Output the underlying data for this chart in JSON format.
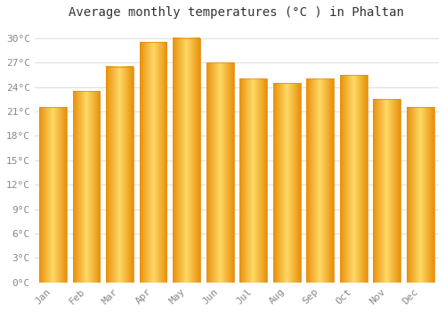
{
  "months": [
    "Jan",
    "Feb",
    "Mar",
    "Apr",
    "May",
    "Jun",
    "Jul",
    "Aug",
    "Sep",
    "Oct",
    "Nov",
    "Dec"
  ],
  "temperatures": [
    21.5,
    23.5,
    26.5,
    29.5,
    30.0,
    27.0,
    25.0,
    24.5,
    25.0,
    25.5,
    22.5,
    21.5
  ],
  "bar_color_light": "#FFD966",
  "bar_color_mid": "#FFC020",
  "bar_color_dark": "#E8900A",
  "title": "Average monthly temperatures (°C ) in Phaltan",
  "ylabel_ticks": [
    "0°C",
    "3°C",
    "6°C",
    "9°C",
    "12°C",
    "15°C",
    "18°C",
    "21°C",
    "24°C",
    "27°C",
    "30°C"
  ],
  "ytick_values": [
    0,
    3,
    6,
    9,
    12,
    15,
    18,
    21,
    24,
    27,
    30
  ],
  "ylim": [
    0,
    31.5
  ],
  "background_color": "#FFFFFF",
  "grid_color": "#DDDDDD",
  "title_fontsize": 10,
  "tick_fontsize": 8,
  "font_family": "monospace",
  "tick_color": "#888888",
  "bar_width": 0.82
}
